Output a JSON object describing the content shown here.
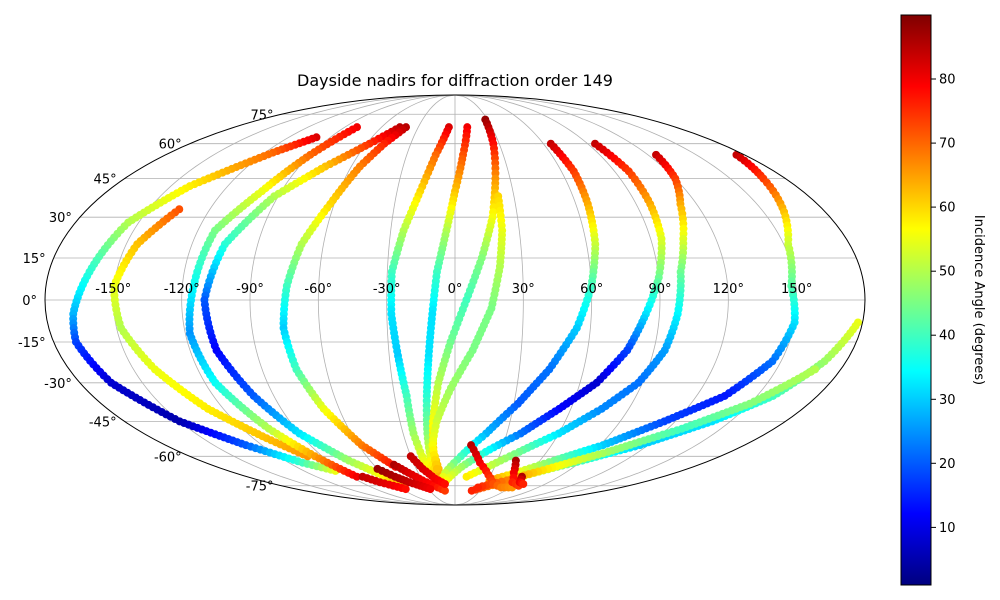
{
  "chart_data": {
    "type": "scatter",
    "projection": "mollweide",
    "title": "Dayside nadirs for diffraction order 149",
    "grid": true,
    "x_ticks": [
      -150,
      -120,
      -90,
      -60,
      -30,
      0,
      30,
      60,
      90,
      120,
      150
    ],
    "x_tick_labels": [
      "-150°",
      "-120°",
      "-90°",
      "-60°",
      "-30°",
      "0°",
      "30°",
      "60°",
      "90°",
      "120°",
      "150°"
    ],
    "y_ticks": [
      -75,
      -60,
      -45,
      -30,
      -15,
      0,
      15,
      30,
      45,
      60,
      75
    ],
    "y_tick_labels": [
      "-75°",
      "-60°",
      "-45°",
      "-30°",
      "-15°",
      "0°",
      "15°",
      "30°",
      "45°",
      "60°",
      "75°"
    ],
    "xlim": [
      -180,
      180
    ],
    "ylim": [
      -90,
      90
    ],
    "colorbar": {
      "label": "Incidence Angle (degrees)",
      "colormap": "jet",
      "range": [
        1,
        90
      ],
      "ticks": [
        10,
        20,
        30,
        40,
        50,
        60,
        70,
        80
      ],
      "tick_labels": [
        "10",
        "20",
        "30",
        "40",
        "50",
        "60",
        "70",
        "80"
      ]
    },
    "tracks": [
      {
        "points": [
          [
            -100,
            63,
            82
          ],
          [
            -115,
            56,
            70
          ],
          [
            -140,
            42,
            58
          ],
          [
            -155,
            28,
            50
          ],
          [
            -162,
            10,
            38
          ],
          [
            -168,
            -5,
            28
          ],
          [
            -170,
            -15,
            18
          ],
          [
            -165,
            -30,
            8
          ],
          [
            -150,
            -45,
            5
          ],
          [
            -130,
            -55,
            20
          ],
          [
            -110,
            -63,
            40
          ],
          [
            -95,
            -67,
            55
          ]
        ]
      },
      {
        "points": [
          [
            -135,
            33,
            72
          ],
          [
            -145,
            20,
            62
          ],
          [
            -150,
            5,
            55
          ],
          [
            -148,
            -10,
            50
          ],
          [
            -140,
            -25,
            55
          ],
          [
            -128,
            -40,
            58
          ],
          [
            -112,
            -52,
            62
          ],
          [
            -100,
            -60,
            66
          ]
        ]
      },
      {
        "points": [
          [
            -45,
            68,
            85
          ],
          [
            -58,
            60,
            75
          ],
          [
            -75,
            50,
            62
          ],
          [
            -92,
            38,
            50
          ],
          [
            -105,
            20,
            38
          ],
          [
            -110,
            0,
            20
          ],
          [
            -108,
            -18,
            12
          ],
          [
            -100,
            -35,
            20
          ],
          [
            -90,
            -50,
            32
          ],
          [
            -75,
            -62,
            48
          ],
          [
            -60,
            -70,
            58
          ],
          [
            -50,
            -74,
            66
          ]
        ]
      },
      {
        "points": [
          [
            -80,
            68,
            80
          ],
          [
            -90,
            55,
            70
          ],
          [
            -100,
            40,
            55
          ],
          [
            -112,
            25,
            45
          ],
          [
            -115,
            5,
            35
          ],
          [
            -118,
            -12,
            25
          ],
          [
            -115,
            -30,
            35
          ],
          [
            -105,
            -48,
            50
          ],
          [
            -95,
            -60,
            65
          ],
          [
            -85,
            -70,
            80
          ]
        ]
      },
      {
        "points": [
          [
            -40,
            68,
            85
          ],
          [
            -48,
            60,
            76
          ],
          [
            -55,
            50,
            68
          ],
          [
            -62,
            35,
            60
          ],
          [
            -70,
            20,
            50
          ],
          [
            -74,
            5,
            40
          ],
          [
            -76,
            -10,
            30
          ],
          [
            -74,
            -25,
            40
          ],
          [
            -68,
            -40,
            55
          ],
          [
            -58,
            -55,
            68
          ],
          [
            -45,
            -65,
            78
          ]
        ]
      },
      {
        "points": [
          [
            -5,
            68,
            82
          ],
          [
            -12,
            55,
            70
          ],
          [
            -18,
            40,
            60
          ],
          [
            -24,
            25,
            50
          ],
          [
            -28,
            10,
            40
          ],
          [
            -28,
            -5,
            32
          ],
          [
            -26,
            -20,
            30
          ],
          [
            -24,
            -35,
            40
          ],
          [
            -24,
            -50,
            48
          ],
          [
            -22,
            -62,
            55
          ],
          [
            -18,
            -70,
            60
          ]
        ]
      },
      {
        "points": [
          [
            10,
            68,
            80
          ],
          [
            5,
            55,
            72
          ],
          [
            0,
            40,
            62
          ],
          [
            -4,
            25,
            50
          ],
          [
            -8,
            10,
            40
          ],
          [
            -10,
            -5,
            32
          ],
          [
            -12,
            -20,
            32
          ],
          [
            -14,
            -35,
            38
          ],
          [
            -16,
            -50,
            46
          ],
          [
            -17,
            -62,
            56
          ],
          [
            -15,
            -72,
            64
          ]
        ]
      },
      {
        "points": [
          [
            28,
            72,
            88
          ],
          [
            26,
            60,
            78
          ],
          [
            22,
            45,
            66
          ],
          [
            18,
            30,
            56
          ],
          [
            12,
            15,
            46
          ],
          [
            5,
            0,
            40
          ],
          [
            -2,
            -15,
            44
          ],
          [
            -8,
            -30,
            50
          ],
          [
            -12,
            -45,
            56
          ],
          [
            -14,
            -58,
            60
          ],
          [
            -12,
            -70,
            64
          ]
        ]
      },
      {
        "points": [
          [
            22,
            38,
            60
          ],
          [
            22,
            25,
            55
          ],
          [
            20,
            12,
            50
          ],
          [
            16,
            -3,
            45
          ],
          [
            8,
            -18,
            45
          ],
          [
            -2,
            -32,
            48
          ],
          [
            -10,
            -45,
            52
          ],
          [
            -14,
            -55,
            56
          ],
          [
            -14,
            -66,
            62
          ]
        ]
      },
      {
        "points": [
          [
            65,
            60,
            84
          ],
          [
            67,
            48,
            74
          ],
          [
            66,
            35,
            64
          ],
          [
            64,
            20,
            52
          ],
          [
            60,
            5,
            40
          ],
          [
            54,
            -10,
            30
          ],
          [
            44,
            -25,
            22
          ],
          [
            32,
            -38,
            20
          ],
          [
            18,
            -50,
            28
          ],
          [
            4,
            -60,
            40
          ],
          [
            -8,
            -68,
            52
          ],
          [
            -15,
            -74,
            60
          ]
        ]
      },
      {
        "points": [
          [
            95,
            60,
            84
          ],
          [
            98,
            48,
            74
          ],
          [
            97,
            35,
            64
          ],
          [
            95,
            22,
            54
          ],
          [
            90,
            8,
            44
          ],
          [
            84,
            -5,
            32
          ],
          [
            78,
            -18,
            18
          ],
          [
            68,
            -30,
            8
          ],
          [
            54,
            -40,
            12
          ],
          [
            38,
            -50,
            22
          ],
          [
            20,
            -58,
            36
          ],
          [
            5,
            -65,
            48
          ],
          [
            -8,
            -72,
            56
          ]
        ]
      },
      {
        "points": [
          [
            125,
            55,
            84
          ],
          [
            120,
            45,
            74
          ],
          [
            112,
            35,
            64
          ],
          [
            105,
            22,
            54
          ],
          [
            100,
            10,
            44
          ],
          [
            98,
            -5,
            34
          ],
          [
            95,
            -18,
            26
          ],
          [
            88,
            -30,
            22
          ],
          [
            76,
            -40,
            24
          ],
          [
            60,
            -50,
            32
          ],
          [
            42,
            -58,
            44
          ],
          [
            25,
            -65,
            52
          ],
          [
            10,
            -70,
            58
          ]
        ]
      },
      {
        "points": [
          [
            175,
            55,
            84
          ],
          [
            168,
            45,
            74
          ],
          [
            160,
            32,
            62
          ],
          [
            152,
            20,
            52
          ],
          [
            148,
            5,
            42
          ],
          [
            150,
            -8,
            32
          ],
          [
            146,
            -22,
            22
          ],
          [
            134,
            -35,
            14
          ],
          [
            114,
            -45,
            18
          ],
          [
            92,
            -55,
            30
          ],
          [
            70,
            -62,
            44
          ],
          [
            50,
            -68,
            56
          ],
          [
            32,
            -72,
            66
          ]
        ]
      },
      {
        "points": [
          [
            178,
            -8,
            55
          ],
          [
            170,
            -22,
            48
          ],
          [
            158,
            -35,
            40
          ],
          [
            140,
            -45,
            32
          ],
          [
            115,
            -55,
            30
          ],
          [
            90,
            -62,
            40
          ],
          [
            65,
            -68,
            54
          ],
          [
            42,
            -74,
            66
          ],
          [
            20,
            -78,
            76
          ]
        ]
      },
      {
        "points": [
          [
            168,
            -25,
            50
          ],
          [
            150,
            -38,
            46
          ],
          [
            128,
            -48,
            40
          ],
          [
            100,
            -58,
            48
          ],
          [
            72,
            -66,
            58
          ],
          [
            48,
            -72,
            68
          ],
          [
            25,
            -76,
            76
          ]
        ]
      },
      {
        "points": [
          [
            10,
            -55,
            85
          ],
          [
            18,
            -63,
            80
          ],
          [
            28,
            -69,
            76
          ],
          [
            38,
            -74,
            72
          ],
          [
            50,
            -76,
            68
          ],
          [
            62,
            -76,
            66
          ]
        ]
      },
      {
        "points": [
          [
            43,
            -62,
            86
          ],
          [
            48,
            -68,
            80
          ],
          [
            55,
            -73,
            76
          ],
          [
            66,
            -75,
            74
          ]
        ]
      },
      {
        "points": [
          [
            58,
            -70,
            86
          ],
          [
            62,
            -73,
            80
          ],
          [
            68,
            -74,
            76
          ]
        ]
      },
      {
        "points": [
          [
            -45,
            -64,
            86
          ],
          [
            -38,
            -68,
            82
          ],
          [
            -30,
            -72,
            80
          ],
          [
            -22,
            -75,
            78
          ],
          [
            -12,
            -78,
            74
          ]
        ]
      },
      {
        "points": [
          [
            -30,
            -60,
            84
          ],
          [
            -25,
            -66,
            82
          ],
          [
            -18,
            -71,
            80
          ],
          [
            -10,
            -74,
            78
          ]
        ]
      },
      {
        "points": [
          [
            -60,
            -66,
            88
          ],
          [
            -52,
            -70,
            86
          ],
          [
            -44,
            -73,
            84
          ],
          [
            -36,
            -75,
            82
          ],
          [
            -28,
            -77,
            80
          ]
        ]
      },
      {
        "points": [
          [
            -80,
            -70,
            84
          ],
          [
            -72,
            -73,
            82
          ],
          [
            -64,
            -75,
            80
          ],
          [
            -56,
            -77,
            78
          ]
        ]
      }
    ]
  }
}
